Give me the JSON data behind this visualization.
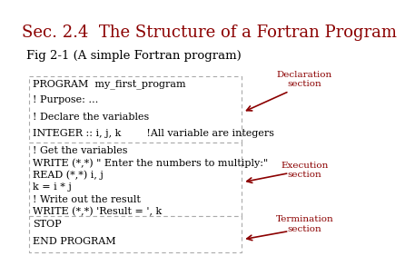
{
  "title": "Sec. 2.4  The Structure of a Fortran Program",
  "title_color": "#8B0000",
  "title_fontsize": 13,
  "subtitle": "Fig 2-1 (A simple Fortran program)",
  "subtitle_fontsize": 9.5,
  "bg_color": "#FFFFFF",
  "box_border_color": "#AAAAAA",
  "declaration_lines": [
    "PROGRAM  my_first_program",
    "! Purpose: …",
    "! Declare the variables",
    "INTEGER :: i, j, k        !All variable are integers"
  ],
  "execution_lines": [
    "! Get the variables",
    "WRITE (*,*) \" Enter the numbers to multiply:\"",
    "READ (*,*) i, j",
    "k = i * j",
    "! Write out the result",
    "WRITE (*,*) 'Result = ', k"
  ],
  "termination_lines": [
    "STOP",
    "END PROGRAM"
  ],
  "section_labels": [
    "Declaration\nsection",
    "Execution\nsection",
    "Termination\nsection"
  ],
  "section_color": "#8B0000",
  "code_fontsize": 8.0,
  "label_fontsize": 7.5
}
